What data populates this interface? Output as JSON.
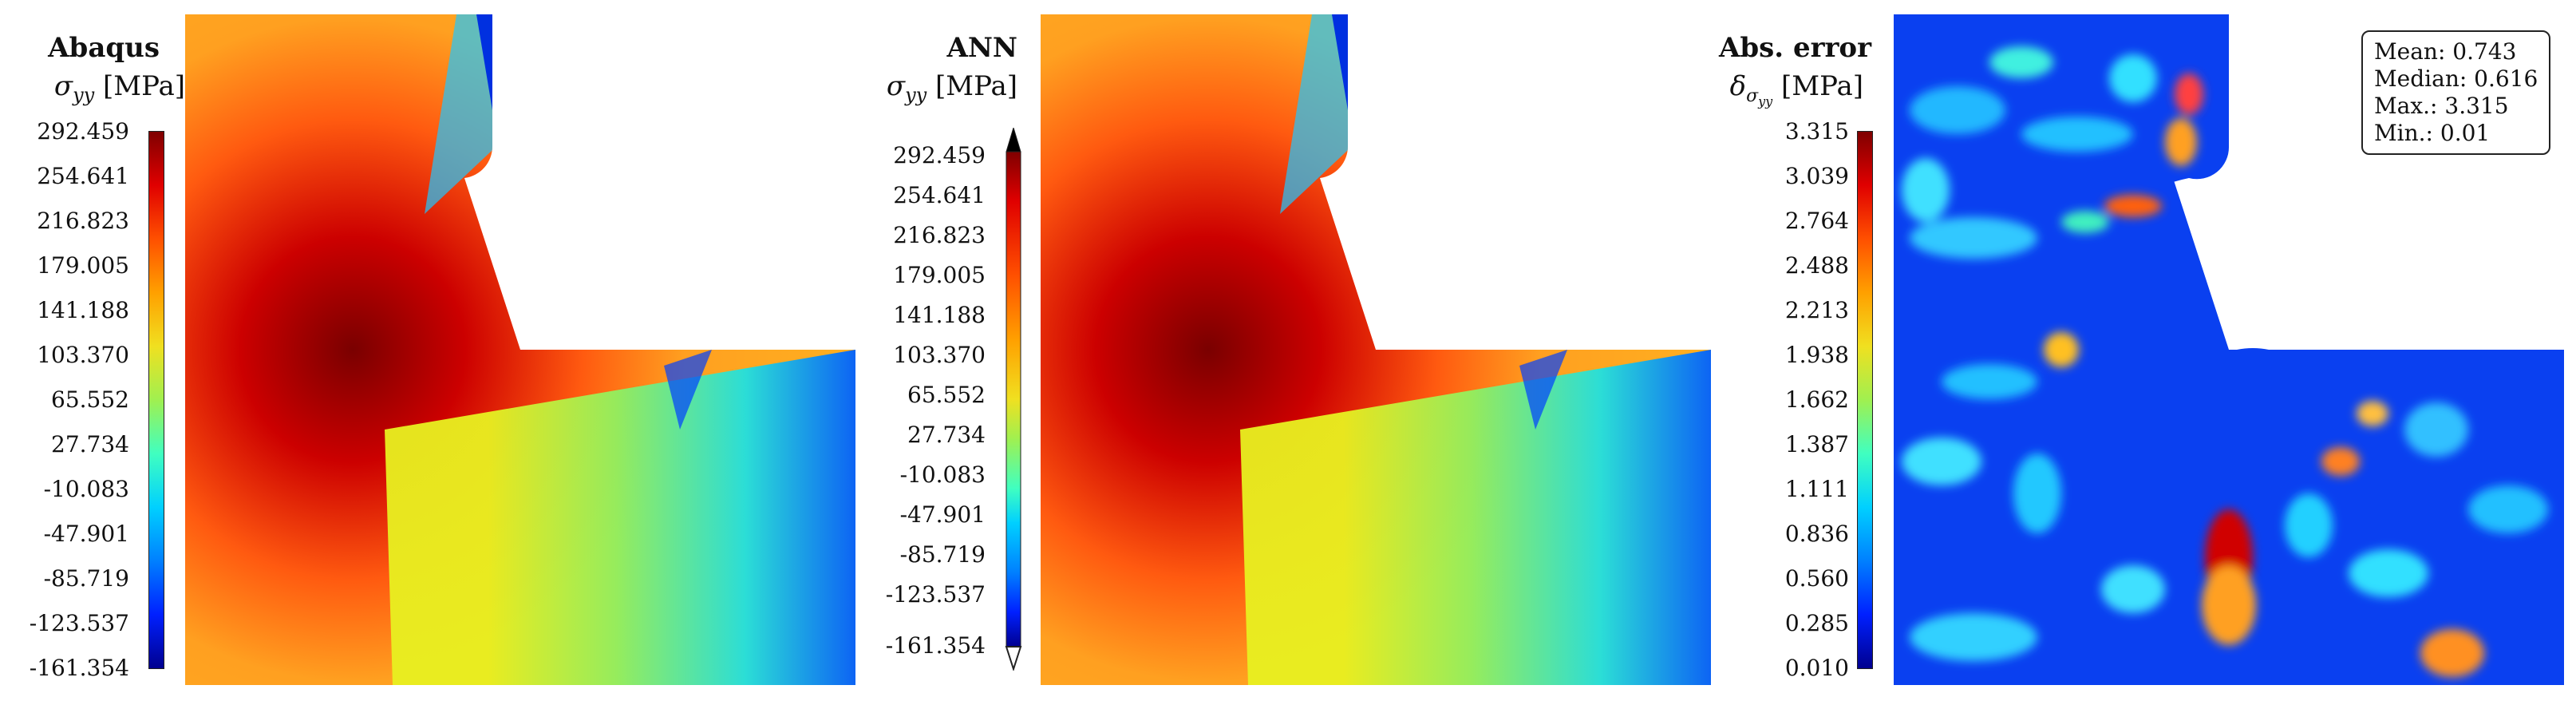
{
  "panels": [
    {
      "title": "Abaqus",
      "symbol": "σ",
      "subscript": "yy",
      "unit": "[MPa]",
      "colorbar_ticks": [
        "292.459",
        "254.641",
        "216.823",
        "179.005",
        "141.188",
        "103.370",
        "65.552",
        "27.734",
        "-10.083",
        "-47.901",
        "-85.719",
        "-123.537",
        "-161.354"
      ],
      "colormap": "jet"
    },
    {
      "title": "ANN",
      "symbol": "σ",
      "subscript": "yy",
      "unit": "[MPa]",
      "colorbar_ticks": [
        "292.459",
        "254.641",
        "216.823",
        "179.005",
        "141.188",
        "103.370",
        "65.552",
        "27.734",
        "-10.083",
        "-47.901",
        "-85.719",
        "-123.537",
        "-161.354"
      ],
      "colormap": "jet",
      "extended_arrows": true
    },
    {
      "title": "Abs. error",
      "symbol": "δ",
      "subscript": "σ",
      "subsubscript": "yy",
      "unit": "[MPa]",
      "colorbar_ticks": [
        "3.315",
        "3.039",
        "2.764",
        "2.488",
        "2.213",
        "1.938",
        "1.662",
        "1.387",
        "1.111",
        "0.836",
        "0.560",
        "0.285",
        "0.010"
      ],
      "colormap": "jet",
      "stats": {
        "mean": "Mean: 0.743",
        "median": "Median: 0.616",
        "max": "Max.: 3.315",
        "min": "Min.: 0.01"
      }
    }
  ]
}
